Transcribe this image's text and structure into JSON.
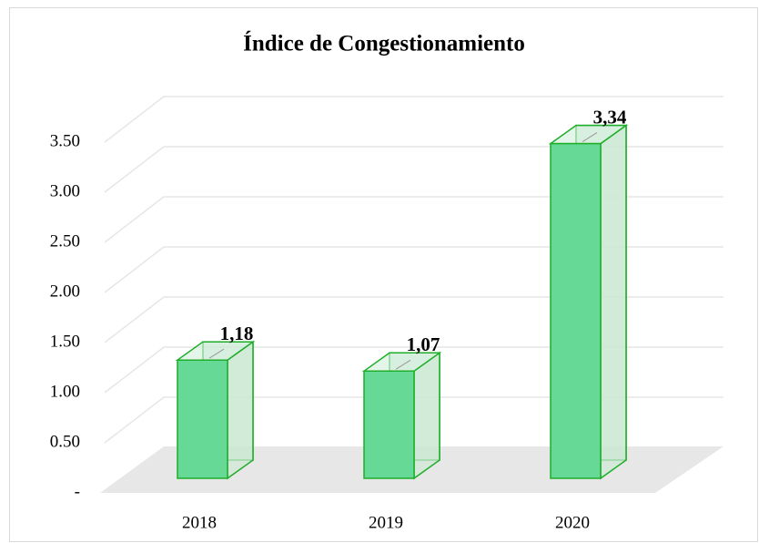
{
  "chart_data": {
    "type": "bar3d",
    "title": "Índice de Congestionamiento",
    "categories": [
      "2018",
      "2019",
      "2020"
    ],
    "values": [
      1.18,
      1.07,
      3.34
    ],
    "value_labels": [
      "1,18",
      "1,07",
      "3,34"
    ],
    "color": "#66d996",
    "ylim": [
      0,
      4
    ],
    "yticks": [
      {
        "value": 0,
        "label": "-"
      },
      {
        "value": 0.5,
        "label": "0.50"
      },
      {
        "value": 1,
        "label": "1.00"
      },
      {
        "value": 1.5,
        "label": "1.50"
      },
      {
        "value": 2,
        "label": "2.00"
      },
      {
        "value": 2.5,
        "label": "2.50"
      },
      {
        "value": 3,
        "label": "3.00"
      },
      {
        "value": 3.5,
        "label": "3.50"
      }
    ],
    "grid": true
  }
}
